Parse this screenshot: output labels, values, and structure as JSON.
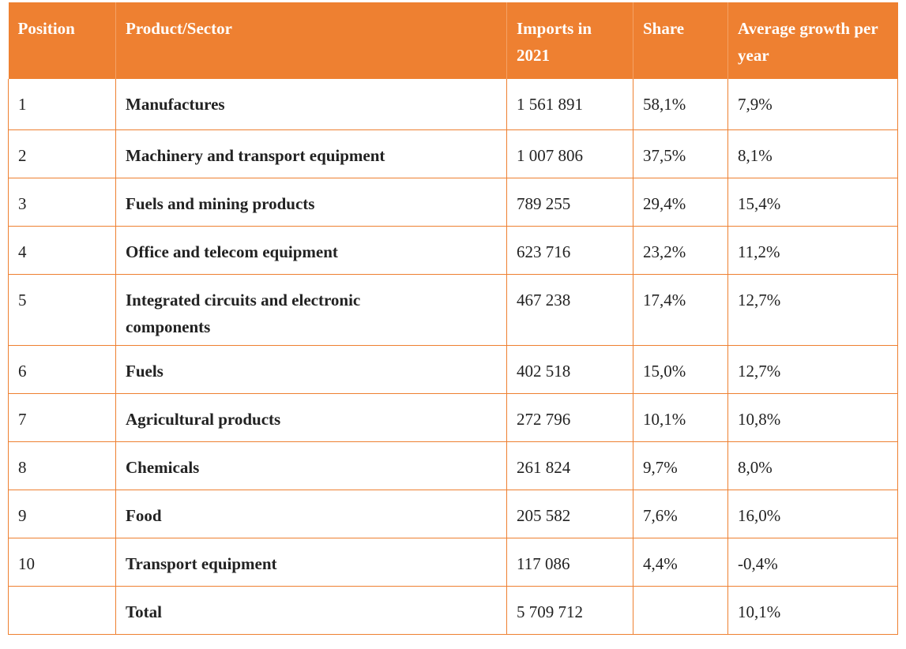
{
  "headers": [
    "Position",
    "Product/Sector",
    "Imports in 2021",
    "Share",
    "Average growth per year"
  ],
  "rows": [
    {
      "position": "1",
      "product": "Manufactures",
      "imports": "1 561 891",
      "share": "58,1%",
      "growth": "7,9%"
    },
    {
      "position": "2",
      "product": "Machinery and transport equipment",
      "imports": "1 007 806",
      "share": "37,5%",
      "growth": "8,1%"
    },
    {
      "position": "3",
      "product": "Fuels and mining products",
      "imports": "789 255",
      "share": "29,4%",
      "growth": "15,4%"
    },
    {
      "position": "4",
      "product": "Office and telecom equipment",
      "imports": "623 716",
      "share": "23,2%",
      "growth": "11,2%"
    },
    {
      "position": "5",
      "product": "Integrated circuits and electronic components",
      "imports": "467 238",
      "share": "17,4%",
      "growth": "12,7%"
    },
    {
      "position": "6",
      "product": "Fuels",
      "imports": "402 518",
      "share": "15,0%",
      "growth": "12,7%"
    },
    {
      "position": "7",
      "product": "Agricultural products",
      "imports": "272 796",
      "share": "10,1%",
      "growth": "10,8%"
    },
    {
      "position": "8",
      "product": "Chemicals",
      "imports": "261 824",
      "share": "9,7%",
      "growth": "8,0%"
    },
    {
      "position": "9",
      "product": "Food",
      "imports": "205 582",
      "share": "7,6%",
      "growth": "16,0%"
    },
    {
      "position": "10",
      "product": "Transport equipment",
      "imports": "117 086",
      "share": "4,4%",
      "growth": "-0,4%"
    }
  ],
  "total": {
    "position": "",
    "product": "Total",
    "imports": "5 709 712",
    "share": "",
    "growth": "10,1%"
  },
  "colors": {
    "header_bg": "#ee8031",
    "header_text": "#ffffff",
    "border": "#ee8031"
  }
}
